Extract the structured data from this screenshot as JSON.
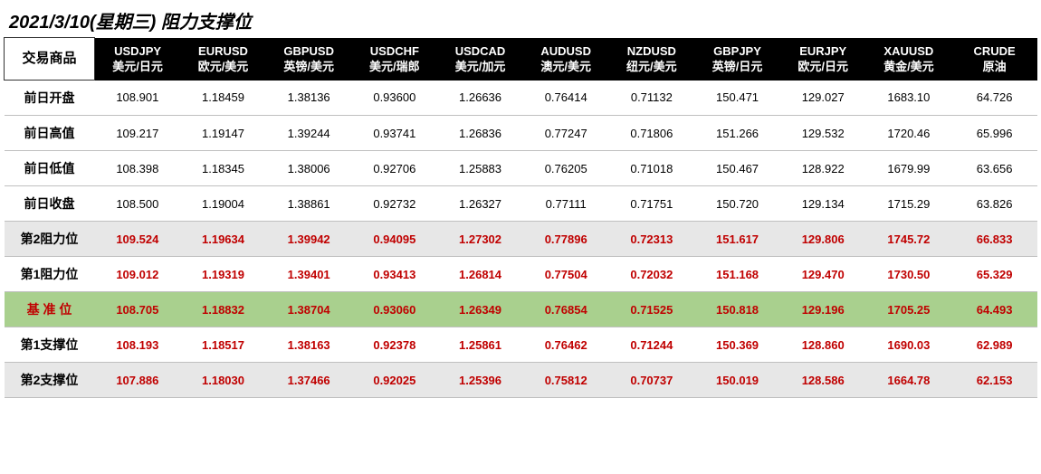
{
  "title": "2021/3/10(星期三) 阻力支撑位",
  "first_col_header": "交易商品",
  "columns": [
    {
      "code": "USDJPY",
      "name": "美元/日元"
    },
    {
      "code": "EURUSD",
      "name": "欧元/美元"
    },
    {
      "code": "GBPUSD",
      "name": "英镑/美元"
    },
    {
      "code": "USDCHF",
      "name": "美元/瑞郎"
    },
    {
      "code": "USDCAD",
      "name": "美元/加元"
    },
    {
      "code": "AUDUSD",
      "name": "澳元/美元"
    },
    {
      "code": "NZDUSD",
      "name": "纽元/美元"
    },
    {
      "code": "GBPJPY",
      "name": "英镑/日元"
    },
    {
      "code": "EURJPY",
      "name": "欧元/日元"
    },
    {
      "code": "XAUUSD",
      "name": "黄金/美元"
    },
    {
      "code": "CRUDE",
      "name": "原油"
    }
  ],
  "rows": [
    {
      "label": "前日开盘",
      "kind": "plain",
      "values": [
        "108.901",
        "1.18459",
        "1.38136",
        "0.93600",
        "1.26636",
        "0.76414",
        "0.71132",
        "150.471",
        "129.027",
        "1683.10",
        "64.726"
      ]
    },
    {
      "label": "前日高值",
      "kind": "plain",
      "values": [
        "109.217",
        "1.19147",
        "1.39244",
        "0.93741",
        "1.26836",
        "0.77247",
        "0.71806",
        "151.266",
        "129.532",
        "1720.46",
        "65.996"
      ]
    },
    {
      "label": "前日低值",
      "kind": "plain",
      "values": [
        "108.398",
        "1.18345",
        "1.38006",
        "0.92706",
        "1.25883",
        "0.76205",
        "0.71018",
        "150.467",
        "128.922",
        "1679.99",
        "63.656"
      ]
    },
    {
      "label": "前日收盘",
      "kind": "plain",
      "values": [
        "108.500",
        "1.19004",
        "1.38861",
        "0.92732",
        "1.26327",
        "0.77111",
        "0.71751",
        "150.720",
        "129.134",
        "1715.29",
        "63.826"
      ]
    },
    {
      "label": "第2阻力位",
      "kind": "alt-red",
      "values": [
        "109.524",
        "1.19634",
        "1.39942",
        "0.94095",
        "1.27302",
        "0.77896",
        "0.72313",
        "151.617",
        "129.806",
        "1745.72",
        "66.833"
      ]
    },
    {
      "label": "第1阻力位",
      "kind": "red",
      "values": [
        "109.012",
        "1.19319",
        "1.39401",
        "0.93413",
        "1.26814",
        "0.77504",
        "0.72032",
        "151.168",
        "129.470",
        "1730.50",
        "65.329"
      ]
    },
    {
      "label": "基 准 位",
      "kind": "pivot",
      "values": [
        "108.705",
        "1.18832",
        "1.38704",
        "0.93060",
        "1.26349",
        "0.76854",
        "0.71525",
        "150.818",
        "129.196",
        "1705.25",
        "64.493"
      ]
    },
    {
      "label": "第1支撑位",
      "kind": "red",
      "values": [
        "108.193",
        "1.18517",
        "1.38163",
        "0.92378",
        "1.25861",
        "0.76462",
        "0.71244",
        "150.369",
        "128.860",
        "1690.03",
        "62.989"
      ]
    },
    {
      "label": "第2支撑位",
      "kind": "alt-red",
      "values": [
        "107.886",
        "1.18030",
        "1.37466",
        "0.92025",
        "1.25396",
        "0.75812",
        "0.70737",
        "150.019",
        "128.586",
        "1664.78",
        "62.153"
      ]
    }
  ],
  "style": {
    "title_fontsize": 20,
    "cell_fontsize": 13,
    "header_bg": "#000000",
    "header_fg": "#ffffff",
    "row_alt_bg": "#e7e7e7",
    "pivot_bg": "#a9d08e",
    "red_color": "#c00000",
    "border_color": "#bfbfbf",
    "background": "#ffffff"
  }
}
